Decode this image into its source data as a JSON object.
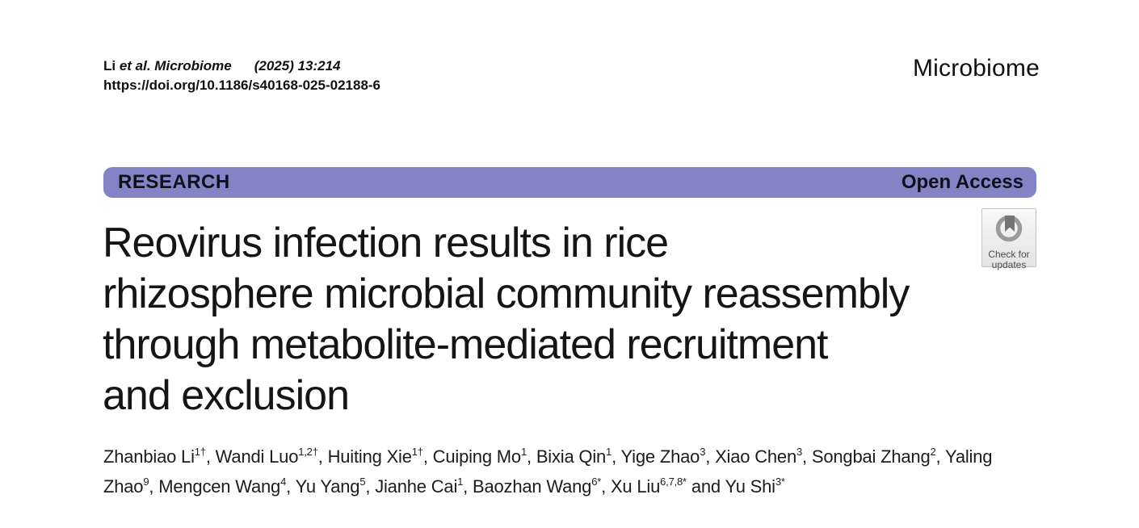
{
  "citation": {
    "authors_plain": "Li ",
    "source_italic": "et al. Microbiome",
    "volume": "(2025) 13:214",
    "doi": "https://doi.org/10.1186/s40168-025-02188-6"
  },
  "journal": {
    "name": "Microbiome"
  },
  "banner": {
    "section_label": "RESEARCH",
    "access_label": "Open Access",
    "background_color": "#8384c5"
  },
  "check_for_updates": {
    "line1": "Check for",
    "line2": "updates",
    "icon": "crossmark-check-for-updates-icon"
  },
  "article": {
    "title_lines": [
      "Reovirus infection results in rice",
      "rhizosphere microbial community reassembly",
      "through metabolite-mediated recruitment",
      "and exclusion"
    ],
    "authors": [
      {
        "name": "Zhanbiao Li",
        "sup": "1†"
      },
      {
        "name": "Wandi Luo",
        "sup": "1,2†"
      },
      {
        "name": "Huiting Xie",
        "sup": "1†"
      },
      {
        "name": "Cuiping Mo",
        "sup": "1"
      },
      {
        "name": "Bixia Qin",
        "sup": "1"
      },
      {
        "name": "Yige Zhao",
        "sup": "3"
      },
      {
        "name": "Xiao Chen",
        "sup": "3"
      },
      {
        "name": "Songbai Zhang",
        "sup": "2"
      },
      {
        "name": "Yaling Zhao",
        "sup": "9"
      },
      {
        "name": "Mengcen Wang",
        "sup": "4"
      },
      {
        "name": "Yu Yang",
        "sup": "5"
      },
      {
        "name": "Jianhe Cai",
        "sup": "1"
      },
      {
        "name": "Baozhan Wang",
        "sup": "6*"
      },
      {
        "name": "Xu Liu",
        "sup": "6,7,8*"
      },
      {
        "name": "Yu Shi",
        "sup": "3*"
      }
    ],
    "authors_separator": ", ",
    "authors_final_joiner": " and "
  }
}
